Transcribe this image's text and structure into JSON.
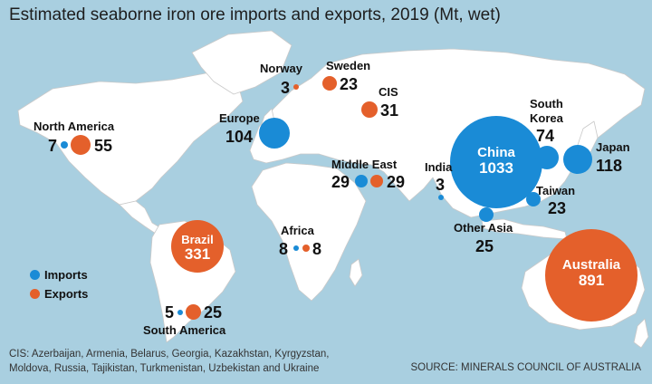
{
  "title": "Estimated seaborne iron ore imports and exports, 2019 (Mt, wet)",
  "colors": {
    "imports": "#1a8bd6",
    "exports": "#e4602b",
    "ocean": "#a9cfe0",
    "land": "#ffffff"
  },
  "legend": {
    "imports": "Imports",
    "exports": "Exports"
  },
  "regions": [
    {
      "name": "North America",
      "imports": 7,
      "exports": 55
    },
    {
      "name": "Norway",
      "exports": 3
    },
    {
      "name": "Sweden",
      "exports": 23
    },
    {
      "name": "CIS",
      "exports": 31
    },
    {
      "name": "Europe",
      "imports": 104
    },
    {
      "name": "Middle East",
      "imports": 29,
      "exports": 29
    },
    {
      "name": "India",
      "imports": 3
    },
    {
      "name": "China",
      "imports": 1033
    },
    {
      "name": "South Korea",
      "imports": 74
    },
    {
      "name": "Japan",
      "imports": 118
    },
    {
      "name": "Taiwan",
      "imports": 23
    },
    {
      "name": "Other Asia",
      "imports": 25
    },
    {
      "name": "Africa",
      "imports": 8,
      "exports": 8
    },
    {
      "name": "Brazil",
      "exports": 331
    },
    {
      "name": "South America",
      "imports": 5,
      "exports": 25
    },
    {
      "name": "Australia",
      "exports": 891
    }
  ],
  "labels": {
    "north_america": {
      "name": "North America",
      "imports": "7",
      "exports": "55"
    },
    "norway": {
      "name": "Norway",
      "exports": "3"
    },
    "sweden": {
      "name": "Sweden",
      "exports": "23"
    },
    "cis": {
      "name": "CIS",
      "exports": "31"
    },
    "europe": {
      "name": "Europe",
      "imports": "104"
    },
    "middle_east": {
      "name": "Middle East",
      "imports": "29",
      "exports": "29"
    },
    "india": {
      "name": "India",
      "imports": "3"
    },
    "china": {
      "name": "China",
      "imports": "1033"
    },
    "south_korea": {
      "name_line1": "South",
      "name_line2": "Korea",
      "imports": "74"
    },
    "japan": {
      "name": "Japan",
      "imports": "118"
    },
    "taiwan": {
      "name": "Taiwan",
      "imports": "23"
    },
    "other_asia": {
      "name": "Other Asia",
      "imports": "25"
    },
    "africa": {
      "name": "Africa",
      "imports": "8",
      "exports": "8"
    },
    "brazil": {
      "name": "Brazil",
      "exports": "331"
    },
    "south_america": {
      "name": "South America",
      "imports": "5",
      "exports": "25"
    },
    "australia": {
      "name": "Australia",
      "exports": "891"
    }
  },
  "footnote": {
    "line1": "CIS: Azerbaijan, Armenia, Belarus, Georgia, Kazakhstan, Kyrgyzstan,",
    "line2": "Moldova, Russia, Tajikistan, Turkmenistan, Uzbekistan and Ukraine"
  },
  "source": "SOURCE: MINERALS COUNCIL OF AUSTRALIA"
}
